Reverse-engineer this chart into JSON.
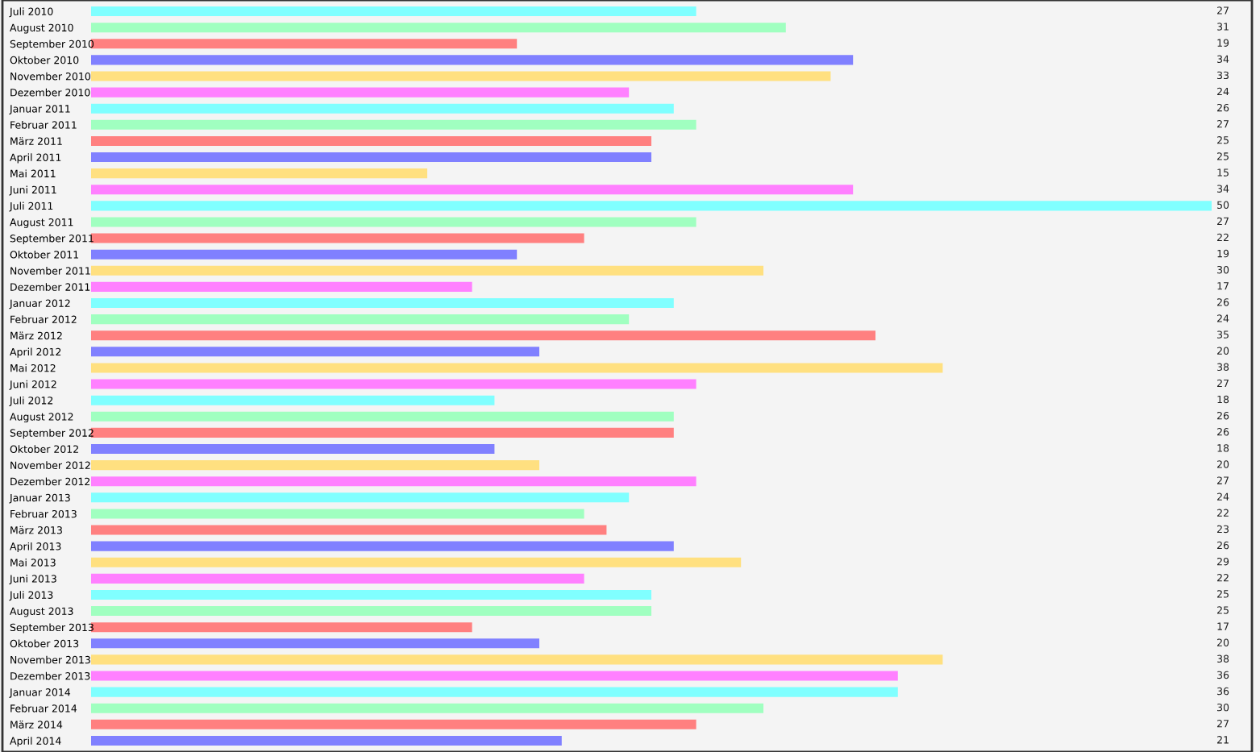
{
  "chart_data": {
    "type": "bar",
    "orientation": "horizontal",
    "categories": [
      "Juli 2010",
      "August 2010",
      "September 2010",
      "Oktober 2010",
      "November 2010",
      "Dezember 2010",
      "Januar 2011",
      "Februar 2011",
      "März 2011",
      "April 2011",
      "Mai 2011",
      "Juni 2011",
      "Juli 2011",
      "August 2011",
      "September 2011",
      "Oktober 2011",
      "November 2011",
      "Dezember 2011",
      "Januar 2012",
      "Februar 2012",
      "März 2012",
      "April 2012",
      "Mai 2012",
      "Juni 2012",
      "Juli 2012",
      "August 2012",
      "September 2012",
      "Oktober 2012",
      "November 2012",
      "Dezember 2012",
      "Januar 2013",
      "Februar 2013",
      "März 2013",
      "April 2013",
      "Mai 2013",
      "Juni 2013",
      "Juli 2013",
      "August 2013",
      "September 2013",
      "Oktober 2013",
      "November 2013",
      "Dezember 2013",
      "Januar 2014",
      "Februar 2014",
      "März 2014",
      "April 2014"
    ],
    "values": [
      27,
      31,
      19,
      34,
      33,
      24,
      26,
      27,
      25,
      25,
      15,
      34,
      50,
      27,
      22,
      19,
      30,
      17,
      26,
      24,
      35,
      20,
      38,
      27,
      18,
      26,
      26,
      18,
      20,
      27,
      24,
      22,
      23,
      26,
      29,
      22,
      25,
      25,
      17,
      20,
      38,
      36,
      36,
      30,
      27,
      21
    ],
    "colors": [
      "#80ffff",
      "#a0ffc0",
      "#ff8080",
      "#8080ff",
      "#ffe080",
      "#ff80ff",
      "#80ffff",
      "#a0ffc0",
      "#ff8080",
      "#8080ff",
      "#ffe080",
      "#ff80ff",
      "#80ffff",
      "#a0ffc0",
      "#ff8080",
      "#8080ff",
      "#ffe080",
      "#ff80ff",
      "#80ffff",
      "#a0ffc0",
      "#ff8080",
      "#8080ff",
      "#ffe080",
      "#ff80ff",
      "#80ffff",
      "#a0ffc0",
      "#ff8080",
      "#8080ff",
      "#ffe080",
      "#ff80ff",
      "#80ffff",
      "#a0ffc0",
      "#ff8080",
      "#8080ff",
      "#ffe080",
      "#ff80ff",
      "#80ffff",
      "#a0ffc0",
      "#ff8080",
      "#8080ff",
      "#ffe080",
      "#ff80ff",
      "#80ffff",
      "#a0ffc0",
      "#ff8080",
      "#8080ff"
    ],
    "xlim": [
      0,
      50
    ],
    "tick_labels": "y",
    "data_labels": true,
    "grid": false,
    "legend": false
  }
}
